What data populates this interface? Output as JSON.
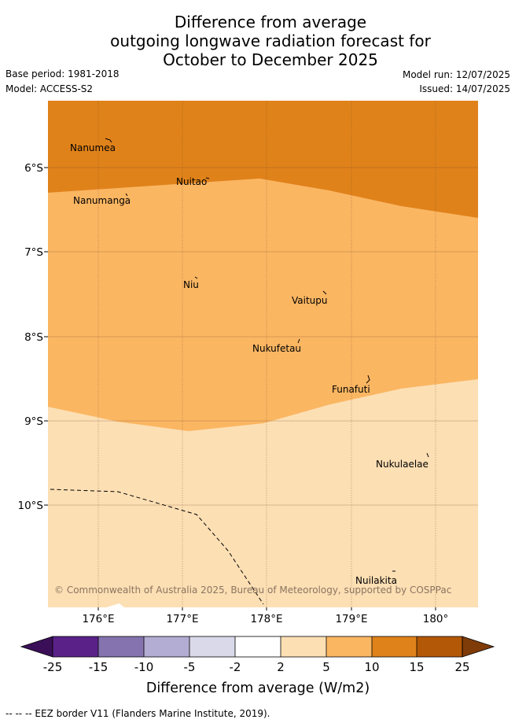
{
  "title": {
    "line1": "Difference from average",
    "line2": "outgoing longwave radiation forecast for",
    "line3": "October to December 2025"
  },
  "meta": {
    "base_period": "Base period: 1981-2018",
    "model": "Model: ACCESS-S2",
    "model_run": "Model run: 12/07/2025",
    "issued": "Issued: 14/07/2025"
  },
  "map": {
    "lat_ticks": [
      "6°S",
      "7°S",
      "8°S",
      "9°S",
      "10°S"
    ],
    "lon_ticks": [
      "176°E",
      "177°E",
      "178°E",
      "179°E",
      "180°"
    ],
    "places": [
      {
        "name": "Nanumea"
      },
      {
        "name": "Nuitao"
      },
      {
        "name": "Nanumanga"
      },
      {
        "name": "Niu"
      },
      {
        "name": "Vaitupu"
      },
      {
        "name": "Nukufetau"
      },
      {
        "name": "Funafuti"
      },
      {
        "name": "Nukulaelae"
      },
      {
        "name": "Nuilakita"
      }
    ],
    "copyright": "© Commonwealth of Australia 2025, Bureau of Meteorology, supported by COSPPac"
  },
  "colorbar": {
    "labels": [
      "-25",
      "-15",
      "-10",
      "-5",
      "-2",
      "2",
      "5",
      "10",
      "15",
      "25"
    ],
    "colors": [
      "#3b0f58",
      "#5a2189",
      "#8473ae",
      "#b3acd3",
      "#d9d9ea",
      "#ffffff",
      "#fddfb4",
      "#fbb662",
      "#e0821a",
      "#b35806",
      "#7f3b08"
    ],
    "title": "Difference from average (W/m2)"
  },
  "legend_note": "-- -- -- EEZ border V11 (Flanders Marine Institute, 2019)."
}
